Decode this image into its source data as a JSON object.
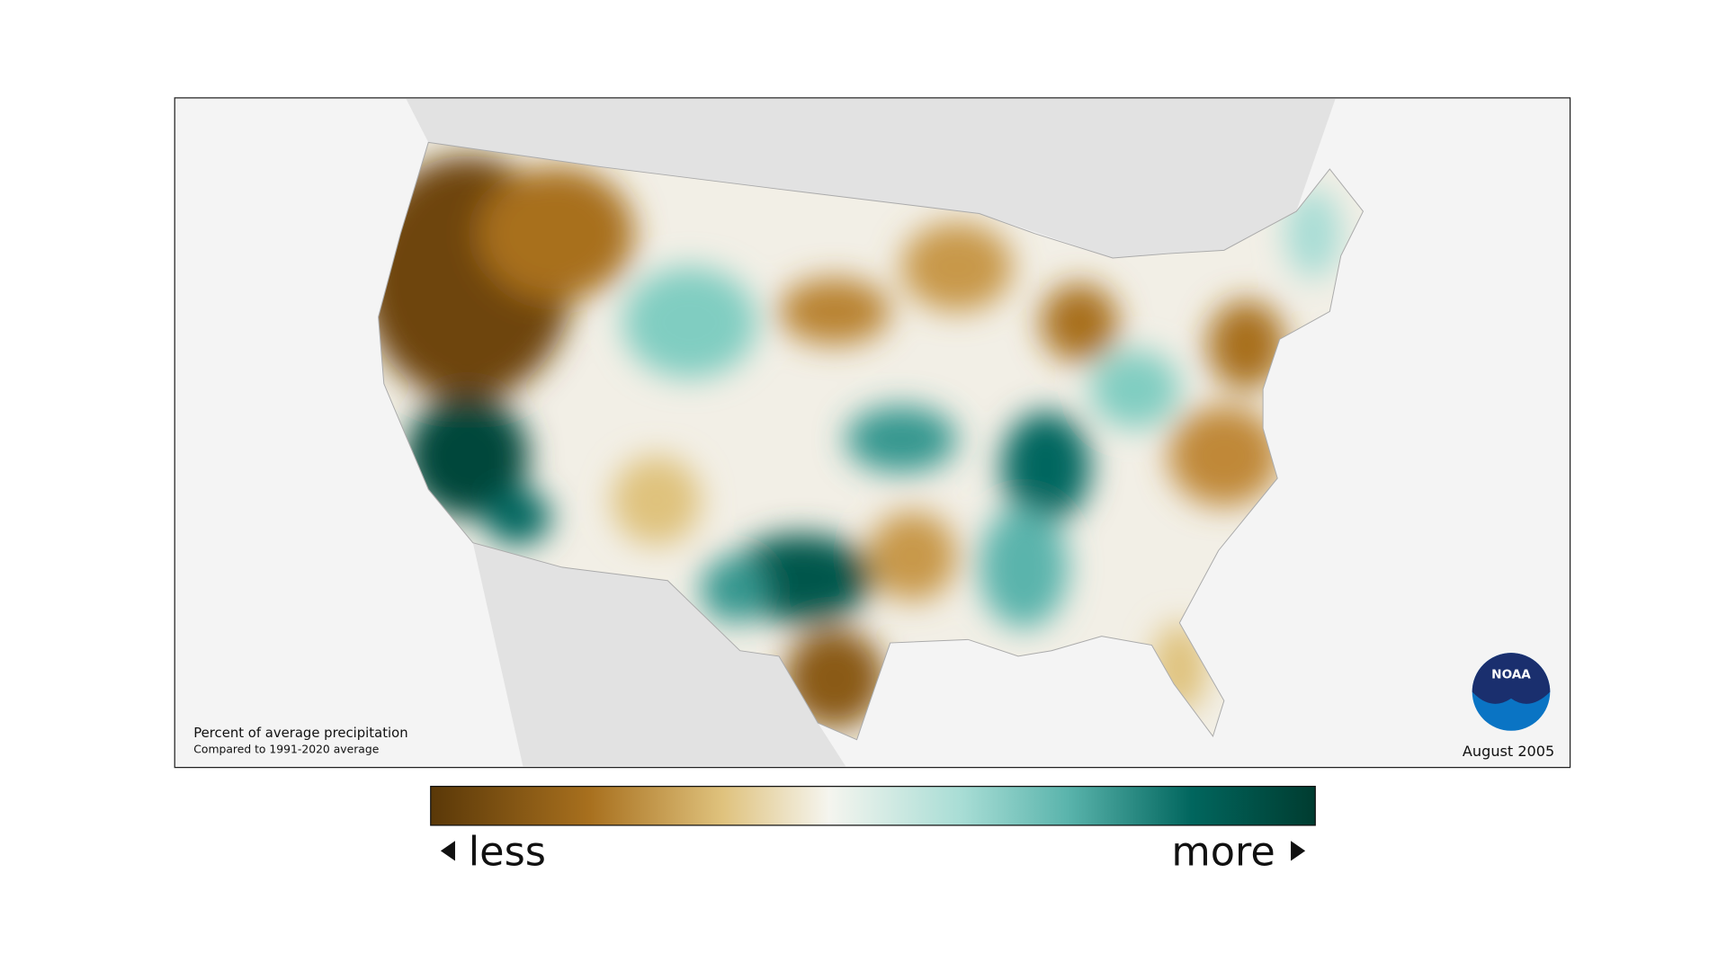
{
  "map": {
    "title": "Percent of average precipitation",
    "subtitle": "Compared to 1991-2020 average",
    "date": "August 2005",
    "logo": "NOAA"
  },
  "legend": {
    "low": "less",
    "high": "more"
  }
}
